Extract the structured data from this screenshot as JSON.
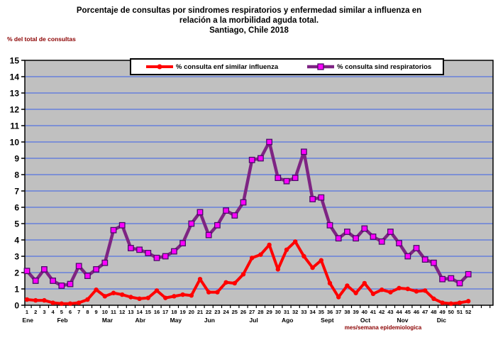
{
  "title": {
    "line1": "Porcentaje de consultas por sindromes respiratorios y  enfermedad similar a influenza en",
    "line2": "relación a la morbilidad aguda total.",
    "line3": "Santiago, Chile 2018"
  },
  "y_axis_title": "% del total de consultas",
  "x_axis_title": "mes/semana epidemiologica",
  "colors": {
    "plot_background": "#C0C0C0",
    "gridline_blue": "#3A5FE8",
    "axis_black": "#000000",
    "dark_red_text": "#8B0000",
    "influenza_red": "#FF0000",
    "respiratorios_purple": "#7E2483",
    "respiratorios_marker_fill": "#FF00FF"
  },
  "chart_data": {
    "type": "line",
    "title": "Porcentaje de consultas por sindromes respiratorios y enfermedad similar a influenza en relación a la morbilidad aguda total. Santiago, Chile 2018",
    "xlabel": "mes/semana epidemiologica",
    "ylabel": "% del total de consultas",
    "ylim": [
      0,
      15
    ],
    "yticks": [
      0,
      1,
      2,
      3,
      4,
      5,
      6,
      7,
      8,
      9,
      10,
      11,
      12,
      13,
      14,
      15
    ],
    "grid": "horizontal-blue",
    "plot_bg": "#C0C0C0",
    "grid_color": "#3A5FE8",
    "legend_position": "top-inside",
    "x": [
      1,
      2,
      3,
      4,
      5,
      6,
      7,
      8,
      9,
      10,
      11,
      12,
      13,
      14,
      15,
      16,
      17,
      18,
      19,
      20,
      21,
      22,
      23,
      24,
      25,
      26,
      27,
      28,
      29,
      30,
      31,
      32,
      33,
      34,
      35,
      36,
      37,
      38,
      39,
      40,
      41,
      42,
      43,
      44,
      45,
      46,
      47,
      48,
      49,
      50,
      51,
      52
    ],
    "months": [
      {
        "label": "Ene",
        "week": 1.1
      },
      {
        "label": "Feb",
        "week": 5.1
      },
      {
        "label": "Mar",
        "week": 10.3
      },
      {
        "label": "Abr",
        "week": 14.1
      },
      {
        "label": "May",
        "week": 18.2
      },
      {
        "label": "Jun",
        "week": 22.1
      },
      {
        "label": "Jul",
        "week": 27.2
      },
      {
        "label": "Ago",
        "week": 31.1
      },
      {
        "label": "Sept",
        "week": 35.7
      },
      {
        "label": "Oct",
        "week": 40.1
      },
      {
        "label": "Nov",
        "week": 44.4
      },
      {
        "label": "Dic",
        "week": 48.9
      }
    ],
    "series": [
      {
        "id": "influenza",
        "name": "% consulta enf similar influenza",
        "color": "#FF0000",
        "marker": "circle",
        "line_width": 4,
        "values": [
          0.35,
          0.3,
          0.3,
          0.15,
          0.1,
          0.1,
          0.15,
          0.35,
          0.95,
          0.55,
          0.75,
          0.65,
          0.5,
          0.4,
          0.45,
          0.9,
          0.45,
          0.55,
          0.65,
          0.6,
          1.6,
          0.8,
          0.8,
          1.4,
          1.35,
          1.9,
          2.9,
          3.1,
          3.7,
          2.2,
          3.4,
          3.9,
          3.0,
          2.3,
          2.75,
          1.35,
          0.5,
          1.2,
          0.75,
          1.35,
          0.7,
          0.95,
          0.8,
          1.05,
          1.0,
          0.85,
          0.9,
          0.4,
          0.15,
          0.1,
          0.15,
          0.25
        ]
      },
      {
        "id": "respiratorios",
        "name": "% consulta sind respiratorios",
        "color": "#7E2483",
        "marker": "square",
        "marker_fill": "#FF00FF",
        "marker_stroke": "#4A0D66",
        "line_width": 4.5,
        "values": [
          2.1,
          1.5,
          2.2,
          1.5,
          1.2,
          1.3,
          2.4,
          1.8,
          2.2,
          2.6,
          4.6,
          4.9,
          3.5,
          3.4,
          3.2,
          2.9,
          3.0,
          3.3,
          3.8,
          5.0,
          5.7,
          4.3,
          4.9,
          5.8,
          5.5,
          6.3,
          8.9,
          9.0,
          10.0,
          7.8,
          7.6,
          7.8,
          9.4,
          6.5,
          6.6,
          4.9,
          4.1,
          4.5,
          4.1,
          4.7,
          4.2,
          3.9,
          4.5,
          3.8,
          3.0,
          3.5,
          2.8,
          2.6,
          1.6,
          1.65,
          1.35,
          1.9
        ]
      }
    ]
  }
}
